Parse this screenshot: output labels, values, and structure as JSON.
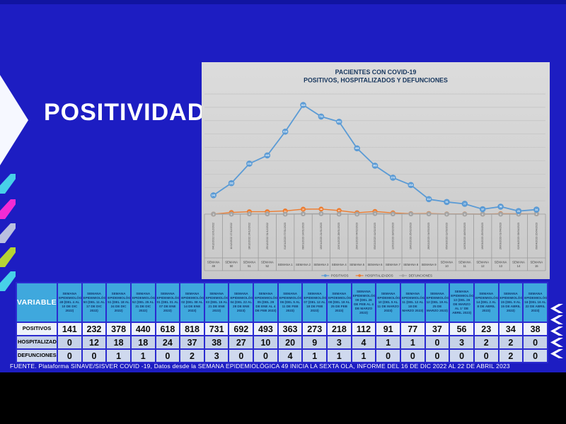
{
  "slide": {
    "title": "POSITIVIDAD",
    "footer": "FUENTE. Plataforma SINAVE/SISVER COVID -19, Datos desde la SEMANA EPIDEMIOLÓGICA 49 INICIA LA SEXTA OLA, INFORME DEL 16 DE DIC 2022 AL 22 DE ABRIL 2023",
    "colors": {
      "background": "#1d1dc2",
      "table_header": "#3fa8dd",
      "chart_panel": "#d6d6d6"
    }
  },
  "chart_data": {
    "type": "line",
    "title_line1": "PACIENTES CON COVID-19",
    "title_line2": "POSITIVOS, HOSPITALIZADOS Y DEFUNCIONES",
    "ylim": [
      0,
      900
    ],
    "grid": true,
    "legend_position": "bottom",
    "x_dates": [
      "04/12/2022 10/12/2022",
      "11/12/2022 17/12/2022",
      "18/12/2022 24/12/2022",
      "25/12/2022 31/12/2022",
      "01/01/2023 07/01/2023",
      "08/01/2023 14/01/2023",
      "15/01/2023 21/01/2023",
      "22/01/2023 28/01/2023",
      "29/01/2023 04/02/2023",
      "05/02/2023 11/02/2023",
      "12/02/2023 18/02/2023",
      "19/02/2023 25/02/2023",
      "26/02/2023 04/03/2023",
      "05/03/2023 11/03/2023",
      "12/03/2023 18/03/2023",
      "19/03/2023 25/03/2023",
      "26/03/2023 01/04/2023",
      "02/04/2023 08/04/2023",
      "09/04/2023 15/04/2023"
    ],
    "x_weeks": [
      "SEMANA 49",
      "SEMANA 50",
      "SEMANA 51",
      "SEMANA 52",
      "SEMANA 1",
      "SEMANA 2",
      "SEMANA 3",
      "SEMANA 4",
      "SEMANA 5",
      "SEMANA 6",
      "SEMANA 7",
      "SEMANA 8",
      "SEMANA 9",
      "SEMANA 10",
      "SEMANA 11",
      "SEMANA 12",
      "SEMANA 13",
      "SEMANA 14",
      "SEMANA 15"
    ],
    "series": [
      {
        "name": "POSITIVOS",
        "color": "#5b9bd5",
        "values": [
          141,
          232,
          378,
          440,
          618,
          818,
          731,
          692,
          493,
          363,
          273,
          218,
          112,
          91,
          77,
          37,
          56,
          23,
          34
        ]
      },
      {
        "name": "HOSPITALIZADOS",
        "color": "#ed7d31",
        "values": [
          0,
          12,
          18,
          18,
          24,
          37,
          38,
          27,
          10,
          20,
          9,
          3,
          4,
          1,
          1,
          0,
          3,
          2,
          2
        ]
      },
      {
        "name": "DEFUNCIONES",
        "color": "#a5a5a5",
        "values": [
          0,
          0,
          1,
          1,
          0,
          2,
          3,
          0,
          0,
          4,
          1,
          1,
          1,
          0,
          0,
          0,
          0,
          0,
          2
        ]
      }
    ]
  },
  "table": {
    "corner_label": "VARIABLE",
    "col_headers": [
      "SEMANA EPIDEMIOLÓGICA 49 (DEL 4 al 10 de DIC 2022)",
      "SEMANA EPIDEMIOLÓGICA 50 (DEL 11 al 17 de DIC 2022)",
      "SEMANA EPIDEMIOLÓGICA 51 (DEL 18 al 24 de DIC 2022)",
      "SEMANA EPIDEMIOLÓGICA 52 (DEL 25 al 31 de DIC 2022)",
      "SEMANA EPIDEMIOLÓGICA 01 (DEL 01 al 07 de ENE 2023)",
      "SEMANA EPIDEMIOLÓGICA 02 (DEL 08 AL 14 DE ENE 2023)",
      "SEMANA EPIDEMIOLÓGICA 03 (DEL 15 AL 21 DE ENE 2023)",
      "SEMANA EPIDEMIOLÓGICA 04 (DEL 22 AL 28 DE ENE 2023)",
      "SEMANA EPIDEMIOLÓGICA 05 (DEL 29 DE ENE AL 4 DE FEB 2023)",
      "SEMANA EPIDEMIOLÓGICA 06 (DEL 5 al 11 DE FEB 2023)",
      "SEMANA EPIDEMIOLÓGICA 07 (DEL 12 al 18 DE FEB 2023)",
      "SEMANA EPIDEMIOLÓGICA 08 (DEL 19 al 25 DE FEB 2023)",
      "SEMANA EPIDEMIOLÓGICA 09 (DEL 26 de FEB al 4 DE MARZO 2023)",
      "SEMANA EPIDEMIOLÓGICA 10 (DEL 5 al 11 DE MARZO 2023)",
      "SEMANA EPIDEMIOLÓGICA 11 (DEL 12 al 18 DE MARZO 2023)",
      "SEMANA EPIDEMIOLÓGICA 12 (DEL 19 al 25 DE MARZO 2023)",
      "SEMANA EPIDEMIOLÓGICA 13 (DEL 26 DE MARZO AL 1° DE ABRIL 2023)",
      "SEMANA EPIDEMIOLÓGICA 14 (DEL 2 AL 8 DE ABRIL 2023)",
      "SEMANA EPIDEMIOLÓGICA 15 (DEL 9 AL 15 DE ABRIL 2023)",
      "SEMANA EPIDEMIOLÓGICA 16 (DEL 16 AL 22 DE ABRIL 2023)"
    ],
    "rows": [
      {
        "label": "POSITIVOS",
        "values": [
          141,
          232,
          378,
          440,
          618,
          818,
          731,
          692,
          493,
          363,
          273,
          218,
          112,
          91,
          77,
          37,
          56,
          23,
          34,
          38
        ]
      },
      {
        "label": "HOSPITALIZADOS",
        "values": [
          0,
          12,
          18,
          18,
          24,
          37,
          38,
          27,
          10,
          20,
          9,
          3,
          4,
          1,
          1,
          0,
          3,
          2,
          2,
          0
        ]
      },
      {
        "label": "DEFUNCIONES",
        "values": [
          0,
          0,
          1,
          1,
          0,
          2,
          3,
          0,
          0,
          4,
          1,
          1,
          1,
          0,
          0,
          0,
          0,
          0,
          2,
          0
        ]
      }
    ]
  }
}
